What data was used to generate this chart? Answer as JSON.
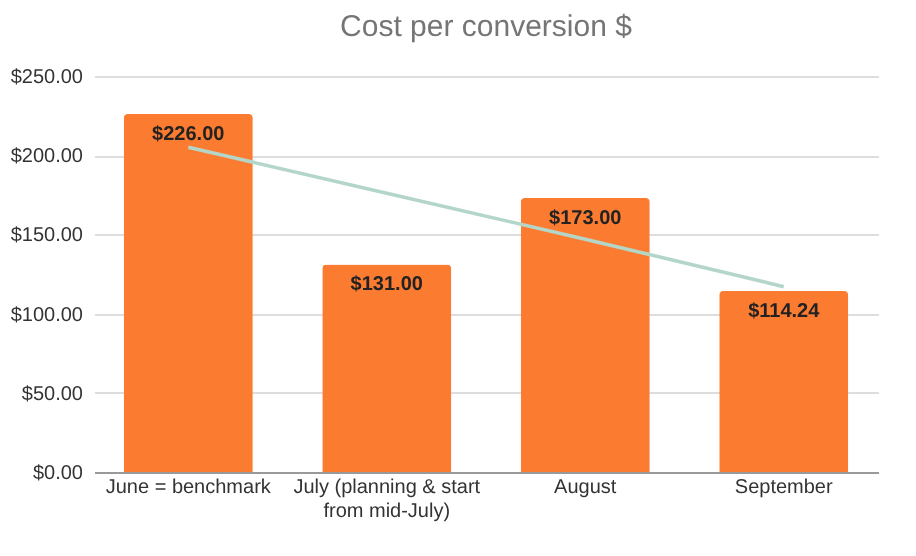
{
  "chart_data": {
    "type": "bar",
    "title": "Cost per conversion $",
    "categories": [
      "June = benchmark",
      "July (planning & start from mid-July)",
      "August",
      "September"
    ],
    "series": [
      {
        "color": "#fb7b30",
        "values": [
          226,
          131,
          173,
          114.24
        ],
        "value_labels": [
          "$226.00",
          "$131.00",
          "$173.00",
          "$114.24"
        ]
      },
      {
        "type": "line",
        "color": "#b4d6c9",
        "values": [
          205,
          176,
          147,
          117
        ]
      }
    ],
    "ylim": [
      0,
      250
    ],
    "yticks": [
      {
        "value": 0,
        "label": "$0.00"
      },
      {
        "value": 50,
        "label": "$50.00"
      },
      {
        "value": 100,
        "label": "$100.00"
      },
      {
        "value": 150,
        "label": "$150.00"
      },
      {
        "value": 200,
        "label": "$200.00"
      },
      {
        "value": 250,
        "label": "$250.00"
      }
    ],
    "grid": "y"
  }
}
